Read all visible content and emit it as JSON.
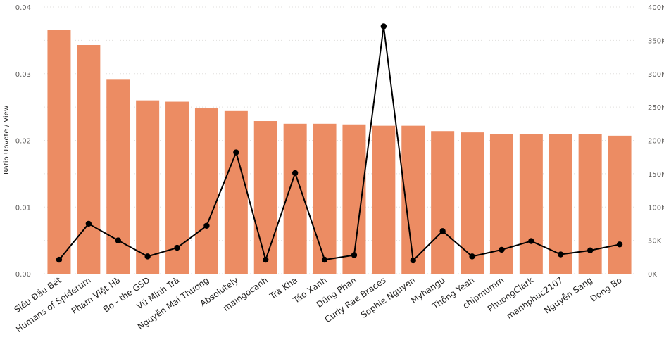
{
  "chart_data": {
    "type": "bar",
    "title": "",
    "xlabel": "",
    "ylabel": "Ratio Upvote / View",
    "y2label": "",
    "categories": [
      "Siêu Đầu Bét",
      "Humans of Spiderum",
      "Phạm Việt Hà",
      "Bo - the GSD",
      "Vũ Minh Trà",
      "Nguyễn Mai Thương",
      "Absolutely",
      "maingocanh",
      "Trà Kha",
      "Táo Xanh",
      "Dũng Phan",
      "Curly Rae Braces",
      "Sophie Nguyen",
      "Myhangu",
      "Thông Yeah",
      "chipmumm",
      "PhuongClark",
      "manhphuc2107",
      "Nguyễn Sang",
      "Dong Bo"
    ],
    "series": [
      {
        "type": "bar",
        "axis": "left",
        "color": "#EC8C63",
        "values": [
          0.0366,
          0.0343,
          0.0292,
          0.026,
          0.0258,
          0.0248,
          0.0244,
          0.0229,
          0.0225,
          0.0225,
          0.0224,
          0.0222,
          0.0222,
          0.0214,
          0.0212,
          0.021,
          0.021,
          0.0209,
          0.0209,
          0.0207
        ]
      },
      {
        "type": "line",
        "axis": "right",
        "color": "#000000",
        "values": [
          21000,
          75000,
          50000,
          26000,
          39000,
          72000,
          182000,
          21000,
          151000,
          21000,
          28000,
          371000,
          20000,
          64000,
          26000,
          36000,
          49000,
          29000,
          35000,
          44000
        ]
      }
    ],
    "ylim": [
      0,
      0.04
    ],
    "y2lim": [
      0,
      400000
    ],
    "yticks": [
      "0.00",
      "0.01",
      "0.02",
      "0.03",
      "0.04"
    ],
    "y2ticks": [
      "0K",
      "50K",
      "100K",
      "150K",
      "200K",
      "250K",
      "300K",
      "350K",
      "400K"
    ],
    "grid": true,
    "legend": "none"
  }
}
